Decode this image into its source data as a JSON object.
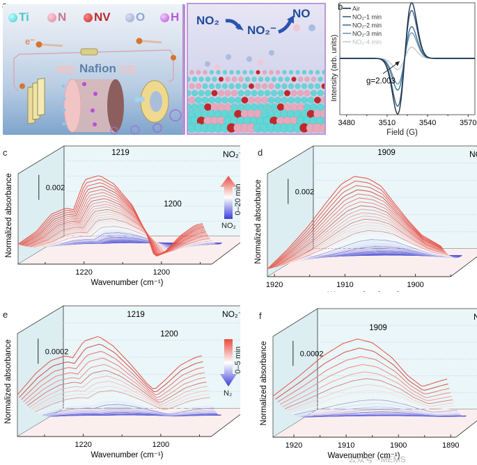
{
  "figure": {
    "panel_labels": {
      "a": "a",
      "b": "b",
      "c": "c",
      "d": "d",
      "e": "e",
      "f": "f"
    },
    "panel_a": {
      "legend": [
        {
          "label": "Ti",
          "color": "#44c9c9",
          "text_color": "#4fc5c7"
        },
        {
          "label": "N",
          "color": "#d9889a",
          "text_color": "#c9768a"
        },
        {
          "label": "NV",
          "color": "#c0282a",
          "text_color": "#b8282c"
        },
        {
          "label": "O",
          "color": "#8ea6d8",
          "text_color": "#8ea6d8"
        },
        {
          "label": "H",
          "color": "#b94fd6",
          "text_color": "#b959d6"
        }
      ],
      "electron_label": "e⁻",
      "we_label": "WE",
      "membrane_label": "Nafion",
      "ce_label": "CE"
    },
    "panel_a2": {
      "species_1": "NO₂",
      "species_2": "NO₂⁻",
      "species_3": "NO"
    },
    "watermark": "公众号 · MEMS"
  },
  "chart_data": [
    {
      "id": "b",
      "type": "line",
      "title": "",
      "xlabel": "Field (G)",
      "ylabel": "Intensity (arb. units)",
      "xlim": [
        3475,
        3575
      ],
      "xticks": [
        3480,
        3510,
        3540,
        3570
      ],
      "annotation": "g=2.003",
      "center_field": 3523,
      "legend_position": "top-left",
      "series": [
        {
          "name": "Air",
          "color": "#1b2f4a",
          "amplitude": 1.0
        },
        {
          "name": "NO₂-1 min",
          "color": "#3a5c7d",
          "amplitude": 0.86
        },
        {
          "name": "NO₂-2 min",
          "color": "#3e7294",
          "amplitude": 0.57
        },
        {
          "name": "NO₂-3 min",
          "color": "#6e94b0",
          "amplitude": 0.46
        },
        {
          "name": "NO₂-4 min",
          "color": "#c3c9cf",
          "amplitude": 0.2
        }
      ]
    },
    {
      "id": "c",
      "type": "line",
      "xlabel": "Wavenumber (cm⁻¹)",
      "ylabel": "Normalized absorbance",
      "xlim": [
        1237,
        1187
      ],
      "xticks": [
        1220,
        1200
      ],
      "minor_ticks": [
        1230,
        1210,
        1190
      ],
      "scale_bar": "0.002",
      "species": "NO₂⁻",
      "peak_labels": [
        "1219",
        "1200"
      ],
      "gradient_label": "0–20 min",
      "gas_label": "NO₂",
      "arrow": "up",
      "n_curves": 40,
      "profile_x": [
        1237,
        1232,
        1228,
        1224,
        1222,
        1219,
        1215,
        1211,
        1206,
        1202,
        1200,
        1197,
        1193,
        1189,
        1187
      ],
      "profile_y": [
        0.2,
        0.35,
        0.55,
        0.62,
        0.6,
        0.95,
        1.0,
        0.9,
        0.65,
        0.3,
        0.05,
        0.12,
        0.3,
        0.42,
        0.44
      ]
    },
    {
      "id": "d",
      "type": "line",
      "xlabel": "Wavenumber (cm⁻¹)",
      "ylabel": "Normalized absorbance",
      "xlim": [
        1921,
        1895
      ],
      "xticks": [
        1920,
        1910,
        1900
      ],
      "minor_ticks": [
        1915,
        1905,
        1895
      ],
      "scale_bar": "0.002",
      "species": "NO",
      "peak_labels": [
        "1909"
      ],
      "n_curves": 36,
      "profile_x": [
        1921,
        1918,
        1915,
        1912,
        1910,
        1908,
        1906,
        1904,
        1902,
        1900,
        1898,
        1896,
        1895
      ],
      "profile_y": [
        0.05,
        0.25,
        0.48,
        0.75,
        0.92,
        1.0,
        0.98,
        0.9,
        0.72,
        0.55,
        0.4,
        0.32,
        0.28
      ]
    },
    {
      "id": "e",
      "type": "line",
      "xlabel": "Wavenumber (cm⁻¹)",
      "ylabel": "Normalized absorbance",
      "xlim": [
        1237,
        1187
      ],
      "xticks": [
        1220,
        1200
      ],
      "minor_ticks": [
        1230,
        1210,
        1190
      ],
      "scale_bar": "0.0002",
      "species": "NO₂⁻",
      "peak_labels": [
        "1219",
        "1200"
      ],
      "gradient_label": "0–5 min",
      "gas_label": "N₂",
      "arrow": "down",
      "n_curves": 22,
      "profile_x": [
        1237,
        1232,
        1228,
        1224,
        1222,
        1219,
        1215,
        1211,
        1206,
        1202,
        1200,
        1197,
        1193,
        1189,
        1187
      ],
      "profile_y": [
        0.4,
        0.62,
        0.75,
        0.8,
        0.78,
        0.95,
        1.0,
        0.9,
        0.7,
        0.52,
        0.45,
        0.55,
        0.7,
        0.78,
        0.8
      ]
    },
    {
      "id": "f",
      "type": "line",
      "xlabel": "Wavenumber (cm⁻¹)",
      "ylabel": "Normalized absorbance",
      "xlim": [
        1924,
        1889
      ],
      "xticks": [
        1920,
        1910,
        1900,
        1890
      ],
      "minor_ticks": [
        1915,
        1905,
        1895
      ],
      "scale_bar": "0.0002",
      "species": "NO",
      "peak_labels": [
        "1909"
      ],
      "n_curves": 18,
      "profile_x": [
        1924,
        1919,
        1914,
        1910,
        1907,
        1904,
        1900,
        1897,
        1894,
        1891,
        1889
      ],
      "profile_y": [
        0.4,
        0.6,
        0.82,
        0.95,
        1.0,
        0.96,
        0.8,
        0.62,
        0.5,
        0.55,
        0.58
      ]
    }
  ]
}
